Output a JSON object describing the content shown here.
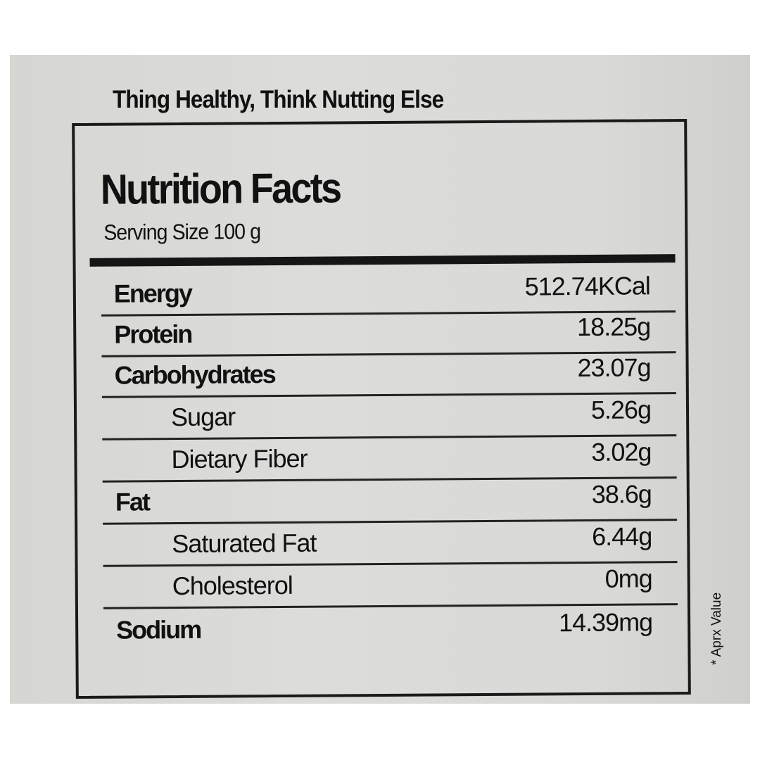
{
  "tagline": "Thing Healthy, Think Nutting Else",
  "label": {
    "title": "Nutrition Facts",
    "serving_size": "Serving Size 100 g",
    "rows": [
      {
        "name": "Energy",
        "value": "512.74KCal",
        "indent": false
      },
      {
        "name": "Protein",
        "value": "18.25g",
        "indent": false
      },
      {
        "name": "Carbohydrates",
        "value": "23.07g",
        "indent": false
      },
      {
        "name": "Sugar",
        "value": "5.26g",
        "indent": true
      },
      {
        "name": "Dietary Fiber",
        "value": "3.02g",
        "indent": true
      },
      {
        "name": "Fat",
        "value": "38.6g",
        "indent": false
      },
      {
        "name": "Saturated Fat",
        "value": "6.44g",
        "indent": true
      },
      {
        "name": "Cholesterol",
        "value": "0mg",
        "indent": true
      },
      {
        "name": "Sodium",
        "value": "14.39mg",
        "indent": false
      }
    ]
  },
  "footnote": "* Aprx Value"
}
